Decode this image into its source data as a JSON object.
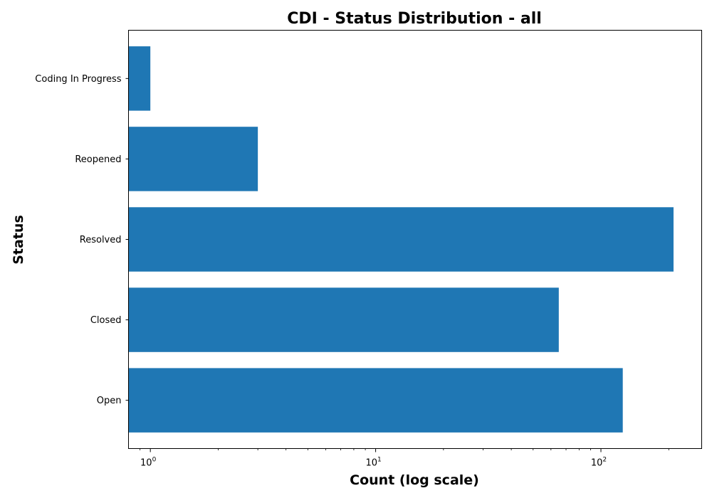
{
  "chart_data": {
    "type": "bar",
    "orientation": "horizontal",
    "title": "CDI - Status Distribution - all",
    "xlabel": "Count (log scale)",
    "ylabel": "Status",
    "xscale": "log",
    "xlim": [
      0.8,
      280
    ],
    "x_ticks": [
      {
        "value": 1,
        "base": "10",
        "exp": "0"
      },
      {
        "value": 10,
        "base": "10",
        "exp": "1"
      },
      {
        "value": 100,
        "base": "10",
        "exp": "2"
      }
    ],
    "categories": [
      "Coding In Progress",
      "Reopened",
      "Resolved",
      "Closed",
      "Open"
    ],
    "values": [
      1,
      3,
      210,
      65,
      125
    ],
    "bar_color": "#1f77b4",
    "grid": false
  }
}
